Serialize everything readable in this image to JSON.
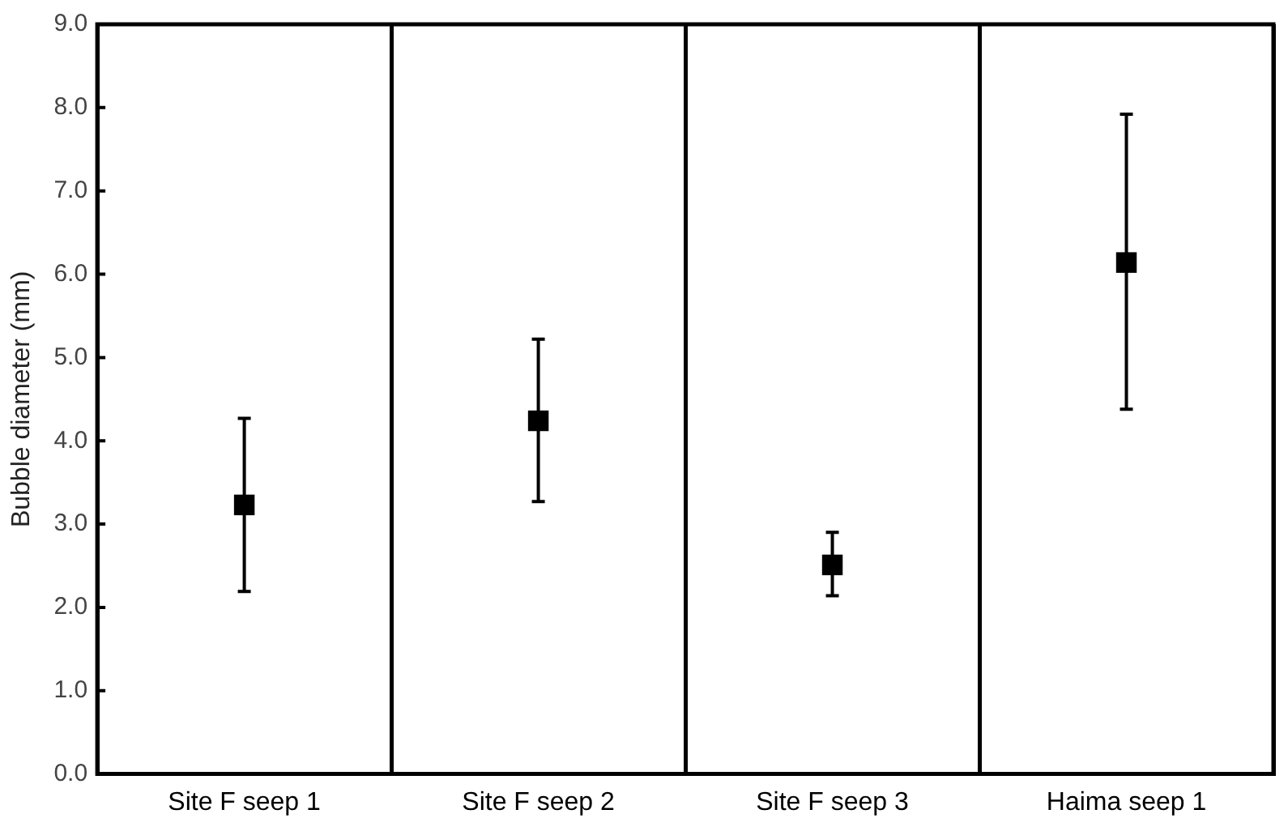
{
  "chart_data": {
    "type": "scatter",
    "ylabel": "Bubble diameter (mm)",
    "categories": [
      "Site F seep 1",
      "Site F seep 2",
      "Site F seep 3",
      "Haima seep 1"
    ],
    "values": [
      3.23,
      4.24,
      2.51,
      6.14
    ],
    "errors": [
      [
        2.19,
        4.27
      ],
      [
        3.27,
        5.22
      ],
      [
        2.14,
        2.9
      ],
      [
        4.38,
        7.92
      ]
    ],
    "color": "#000000",
    "marker": "square",
    "ylim": [
      0,
      9
    ],
    "yticks": [
      {
        "value": 0,
        "label": "0.0"
      },
      {
        "value": 1,
        "label": "1.0"
      },
      {
        "value": 2,
        "label": "2.0"
      },
      {
        "value": 3,
        "label": "3.0"
      },
      {
        "value": 4,
        "label": "4.0"
      },
      {
        "value": 5,
        "label": "5.0"
      },
      {
        "value": 6,
        "label": "6.0"
      },
      {
        "value": 7,
        "label": "7.0"
      },
      {
        "value": 8,
        "label": "8.0"
      },
      {
        "value": 9,
        "label": "9.0"
      }
    ],
    "grid": "x",
    "legend": false
  }
}
